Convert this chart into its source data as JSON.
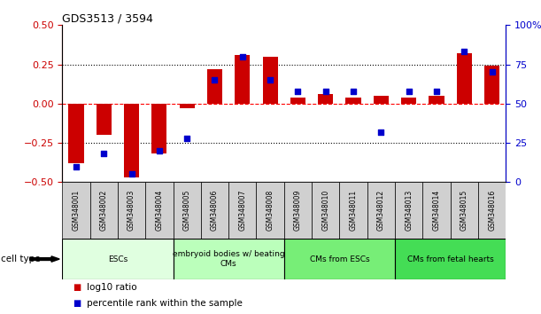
{
  "title": "GDS3513 / 3594",
  "samples": [
    "GSM348001",
    "GSM348002",
    "GSM348003",
    "GSM348004",
    "GSM348005",
    "GSM348006",
    "GSM348007",
    "GSM348008",
    "GSM348009",
    "GSM348010",
    "GSM348011",
    "GSM348012",
    "GSM348013",
    "GSM348014",
    "GSM348015",
    "GSM348016"
  ],
  "log10_ratio": [
    -0.38,
    -0.2,
    -0.47,
    -0.32,
    -0.03,
    0.22,
    0.31,
    0.3,
    0.04,
    0.06,
    0.04,
    0.05,
    0.04,
    0.05,
    0.32,
    0.24
  ],
  "percentile_rank": [
    10,
    18,
    5,
    20,
    28,
    65,
    80,
    65,
    58,
    58,
    58,
    32,
    58,
    58,
    83,
    70
  ],
  "cell_type_groups": [
    {
      "label": "ESCs",
      "start": 0,
      "end": 3,
      "color": "#e0ffe0"
    },
    {
      "label": "embryoid bodies w/ beating\nCMs",
      "start": 4,
      "end": 7,
      "color": "#bbffbb"
    },
    {
      "label": "CMs from ESCs",
      "start": 8,
      "end": 11,
      "color": "#77ee77"
    },
    {
      "label": "CMs from fetal hearts",
      "start": 12,
      "end": 15,
      "color": "#44dd55"
    }
  ],
  "bar_color": "#cc0000",
  "dot_color": "#0000cc",
  "ylim_left": [
    -0.5,
    0.5
  ],
  "ylim_right": [
    0,
    100
  ],
  "yticks_left": [
    -0.5,
    -0.25,
    0,
    0.25,
    0.5
  ],
  "yticks_right": [
    0,
    25,
    50,
    75,
    100
  ],
  "hline_positions": [
    -0.25,
    0,
    0.25
  ],
  "hline_styles": [
    "dotted",
    "dashed",
    "dotted"
  ],
  "hline_colors": [
    "black",
    "red",
    "black"
  ],
  "legend_items": [
    {
      "label": "log10 ratio",
      "color": "#cc0000"
    },
    {
      "label": "percentile rank within the sample",
      "color": "#0000cc"
    }
  ],
  "cell_type_label": "cell type",
  "background_color": "#ffffff",
  "tick_label_color_left": "#cc0000",
  "tick_label_color_right": "#0000cc",
  "sample_box_color": "#d0d0d0"
}
